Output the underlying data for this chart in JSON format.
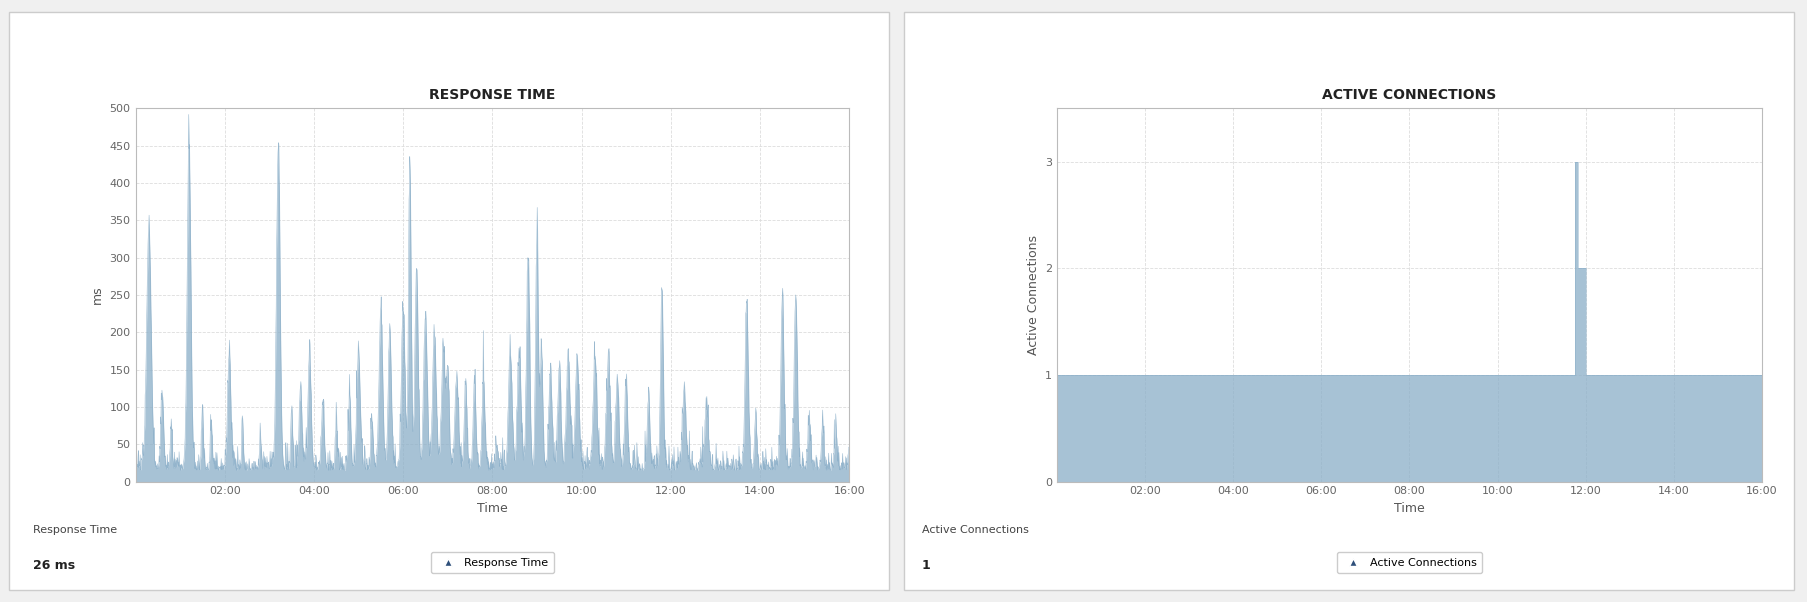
{
  "fig_width": 18.07,
  "fig_height": 6.02,
  "bg_color": "#f0f0f0",
  "panel_bg": "#ffffff",
  "border_color": "#cccccc",
  "left_chart": {
    "title": "RESPONSE TIME",
    "xlabel": "Time",
    "ylabel": "ms",
    "ylim": [
      0,
      500
    ],
    "yticks": [
      0,
      50,
      100,
      150,
      200,
      250,
      300,
      350,
      400,
      450,
      500
    ],
    "xtick_positions": [
      2,
      4,
      6,
      8,
      10,
      12,
      14,
      16
    ],
    "xticks_labels": [
      "02:00",
      "04:00",
      "06:00",
      "08:00",
      "10:00",
      "12:00",
      "14:00",
      "16:00"
    ],
    "legend_label": "Response Time",
    "fill_color": "#8aaec8",
    "line_color": "#8aaec8",
    "grid_color": "#dddddd",
    "summary_label": "Response Time",
    "summary_value": "26 ms"
  },
  "right_chart": {
    "title": "ACTIVE CONNECTIONS",
    "xlabel": "Time",
    "ylabel": "Active Connections",
    "ylim": [
      0,
      3.5
    ],
    "yticks": [
      0,
      1,
      2,
      3
    ],
    "xtick_positions": [
      2,
      4,
      6,
      8,
      10,
      12,
      14,
      16
    ],
    "xticks_labels": [
      "02:00",
      "04:00",
      "06:00",
      "08:00",
      "10:00",
      "12:00",
      "14:00",
      "16:00"
    ],
    "legend_label": "Active Connections",
    "fill_color": "#8aaec8",
    "line_color": "#8aaec8",
    "grid_color": "#dddddd",
    "summary_label": "Active Connections",
    "summary_value": "1"
  }
}
